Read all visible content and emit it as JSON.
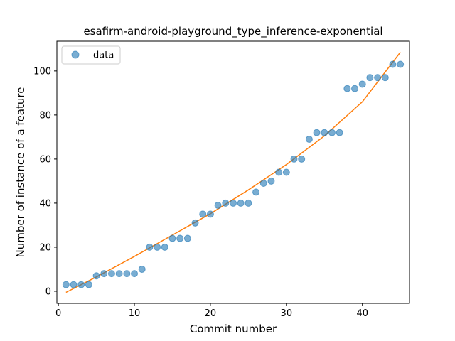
{
  "chart_data": {
    "type": "scatter",
    "title": "esafirm-android-playground_type_inference-exponential",
    "xlabel": "Commit number",
    "ylabel": "Number of instance of a feature",
    "xlim": [
      -0.2,
      46.2
    ],
    "ylim": [
      -5.5,
      113.5
    ],
    "xticks": [
      0,
      10,
      20,
      30,
      40
    ],
    "yticks": [
      0,
      20,
      40,
      60,
      80,
      100
    ],
    "legend": {
      "position": "top-left",
      "entries": [
        "data"
      ]
    },
    "colors": {
      "data": "#1f77b4",
      "fit": "#ff7f0e"
    },
    "series": [
      {
        "name": "data",
        "kind": "scatter",
        "x": [
          1,
          2,
          3,
          4,
          5,
          6,
          7,
          8,
          9,
          10,
          11,
          12,
          13,
          14,
          15,
          16,
          17,
          18,
          19,
          20,
          21,
          22,
          23,
          24,
          25,
          26,
          27,
          28,
          29,
          30,
          31,
          32,
          33,
          34,
          35,
          36,
          37,
          38,
          39,
          40,
          41,
          42,
          43,
          44,
          45
        ],
        "y": [
          3,
          3,
          3,
          3,
          7,
          8,
          8,
          8,
          8,
          8,
          10,
          20,
          20,
          20,
          24,
          24,
          24,
          31,
          35,
          35,
          39,
          40,
          40,
          40,
          40,
          45,
          49,
          50,
          54,
          54,
          60,
          60,
          69,
          72,
          72,
          72,
          72,
          92,
          92,
          94,
          97,
          97,
          97,
          103,
          103
        ]
      },
      {
        "kind": "line",
        "x": [
          1,
          5,
          10,
          15,
          20,
          25,
          30,
          35,
          40,
          45
        ],
        "y": [
          -0.5,
          6.5,
          15.8,
          25.5,
          35.2,
          46.0,
          57.5,
          70.5,
          86.0,
          108.5
        ]
      }
    ]
  }
}
